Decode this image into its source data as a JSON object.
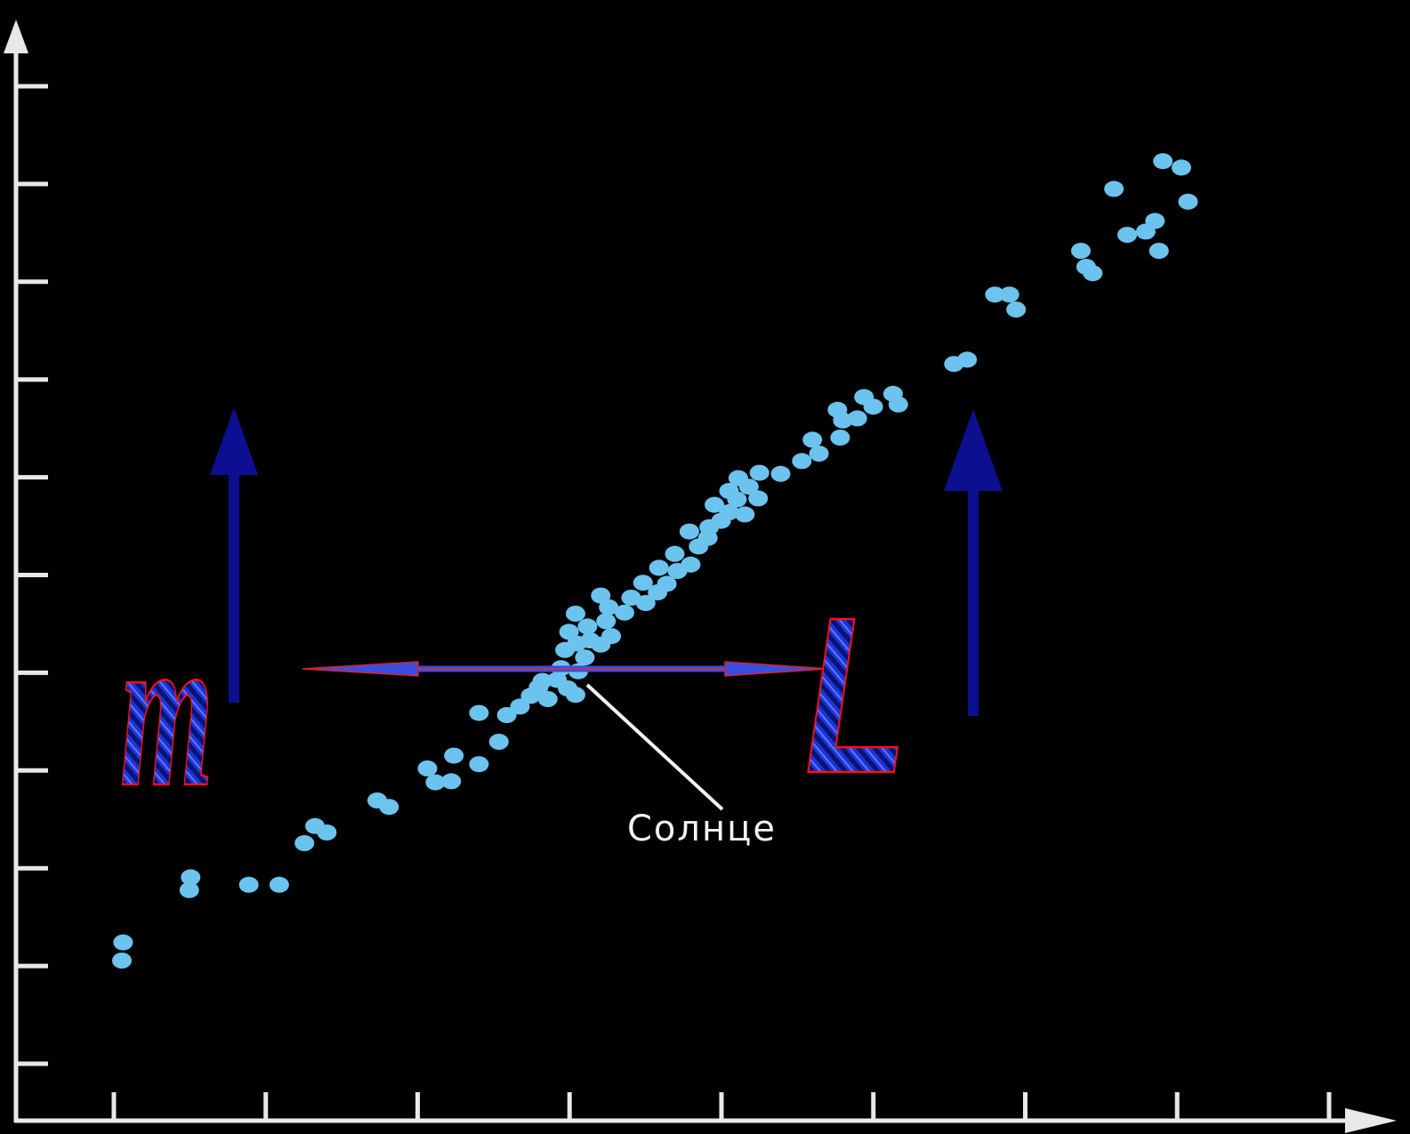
{
  "chart_data": {
    "type": "scatter",
    "title": "",
    "xlabel": "",
    "ylabel": "",
    "x_ticks_count": 9,
    "y_ticks_count": 11,
    "xlim": [
      0,
      100
    ],
    "ylim": [
      0,
      100
    ],
    "grid": false,
    "legend": null,
    "series": [
      {
        "color": "#6cc3ee",
        "points": [
          {
            "x": 8.0,
            "y": 15.0
          },
          {
            "x": 8.1,
            "y": 16.7
          },
          {
            "x": 13.1,
            "y": 21.6
          },
          {
            "x": 13.2,
            "y": 22.8
          },
          {
            "x": 17.6,
            "y": 22.1
          },
          {
            "x": 19.9,
            "y": 22.1
          },
          {
            "x": 21.8,
            "y": 26.0
          },
          {
            "x": 22.6,
            "y": 27.6
          },
          {
            "x": 23.5,
            "y": 27.0
          },
          {
            "x": 27.3,
            "y": 30.0
          },
          {
            "x": 28.2,
            "y": 29.4
          },
          {
            "x": 31.1,
            "y": 33.0
          },
          {
            "x": 31.7,
            "y": 31.7
          },
          {
            "x": 32.9,
            "y": 31.8
          },
          {
            "x": 33.1,
            "y": 34.2
          },
          {
            "x": 35.0,
            "y": 33.4
          },
          {
            "x": 36.5,
            "y": 35.5
          },
          {
            "x": 35.0,
            "y": 38.2
          },
          {
            "x": 37.1,
            "y": 38.0
          },
          {
            "x": 38.1,
            "y": 38.8
          },
          {
            "x": 38.9,
            "y": 39.8
          },
          {
            "x": 39.5,
            "y": 40.6
          },
          {
            "x": 40.2,
            "y": 39.5
          },
          {
            "x": 40.9,
            "y": 41.3
          },
          {
            "x": 41.7,
            "y": 40.5
          },
          {
            "x": 42.3,
            "y": 39.9
          },
          {
            "x": 39.8,
            "y": 41.2
          },
          {
            "x": 41.2,
            "y": 42.4
          },
          {
            "x": 42.5,
            "y": 42.1
          },
          {
            "x": 43.0,
            "y": 43.4
          },
          {
            "x": 41.5,
            "y": 44.1
          },
          {
            "x": 42.4,
            "y": 44.7
          },
          {
            "x": 43.4,
            "y": 45.0
          },
          {
            "x": 44.2,
            "y": 44.6
          },
          {
            "x": 45.0,
            "y": 45.4
          },
          {
            "x": 41.8,
            "y": 45.8
          },
          {
            "x": 43.2,
            "y": 46.3
          },
          {
            "x": 44.6,
            "y": 46.8
          },
          {
            "x": 42.3,
            "y": 47.5
          },
          {
            "x": 44.8,
            "y": 48.1
          },
          {
            "x": 46.0,
            "y": 47.6
          },
          {
            "x": 46.5,
            "y": 49.0
          },
          {
            "x": 47.6,
            "y": 48.5
          },
          {
            "x": 48.5,
            "y": 49.5
          },
          {
            "x": 44.2,
            "y": 49.2
          },
          {
            "x": 47.4,
            "y": 50.4
          },
          {
            "x": 49.2,
            "y": 50.3
          },
          {
            "x": 48.6,
            "y": 51.8
          },
          {
            "x": 50.0,
            "y": 51.5
          },
          {
            "x": 51.0,
            "y": 52.1
          },
          {
            "x": 49.8,
            "y": 53.1
          },
          {
            "x": 51.6,
            "y": 53.8
          },
          {
            "x": 52.3,
            "y": 54.6
          },
          {
            "x": 50.9,
            "y": 55.2
          },
          {
            "x": 52.4,
            "y": 55.6
          },
          {
            "x": 53.3,
            "y": 56.2
          },
          {
            "x": 53.9,
            "y": 57.0
          },
          {
            "x": 52.8,
            "y": 57.7
          },
          {
            "x": 54.5,
            "y": 58.2
          },
          {
            "x": 55.1,
            "y": 56.8
          },
          {
            "x": 53.9,
            "y": 59.0
          },
          {
            "x": 55.4,
            "y": 59.4
          },
          {
            "x": 56.1,
            "y": 58.3
          },
          {
            "x": 54.6,
            "y": 60.2
          },
          {
            "x": 56.2,
            "y": 60.7
          },
          {
            "x": 57.8,
            "y": 60.6
          },
          {
            "x": 59.4,
            "y": 61.8
          },
          {
            "x": 60.7,
            "y": 62.5
          },
          {
            "x": 60.2,
            "y": 63.8
          },
          {
            "x": 62.3,
            "y": 64.0
          },
          {
            "x": 62.5,
            "y": 65.6
          },
          {
            "x": 62.1,
            "y": 66.6
          },
          {
            "x": 63.6,
            "y": 65.8
          },
          {
            "x": 64.1,
            "y": 67.8
          },
          {
            "x": 64.8,
            "y": 66.9
          },
          {
            "x": 66.3,
            "y": 68.1
          },
          {
            "x": 66.7,
            "y": 67.1
          },
          {
            "x": 70.9,
            "y": 70.9
          },
          {
            "x": 71.9,
            "y": 71.3
          },
          {
            "x": 74.0,
            "y": 77.4
          },
          {
            "x": 75.1,
            "y": 77.4
          },
          {
            "x": 75.6,
            "y": 76.0
          },
          {
            "x": 80.5,
            "y": 81.5
          },
          {
            "x": 80.9,
            "y": 80.0
          },
          {
            "x": 81.4,
            "y": 79.4
          },
          {
            "x": 84.0,
            "y": 83.0
          },
          {
            "x": 85.4,
            "y": 83.3
          },
          {
            "x": 86.1,
            "y": 84.3
          },
          {
            "x": 86.4,
            "y": 81.5
          },
          {
            "x": 88.6,
            "y": 86.1
          },
          {
            "x": 83.0,
            "y": 87.3
          },
          {
            "x": 86.7,
            "y": 89.9
          },
          {
            "x": 88.1,
            "y": 89.3
          }
        ]
      }
    ],
    "annotations": [
      {
        "text": "Солнце",
        "x": 41.5,
        "y": 42.6
      },
      {
        "text": "m",
        "kind": "arrow-up",
        "side": "left"
      },
      {
        "text": "L",
        "kind": "arrow-up",
        "side": "right"
      }
    ]
  }
}
